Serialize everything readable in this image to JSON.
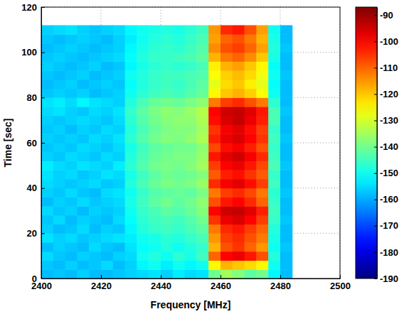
{
  "chart_data": {
    "type": "heatmap",
    "x_label": "Frequency [MHz]",
    "y_label": "Time [sec]",
    "xlim": [
      2400,
      2500
    ],
    "xticks": [
      2400,
      2420,
      2440,
      2460,
      2480,
      2500
    ],
    "ylim": [
      0,
      120
    ],
    "yticks": [
      0,
      20,
      40,
      60,
      80,
      100,
      120
    ],
    "grid": true,
    "x_edges": [
      2400,
      2404,
      2408,
      2412,
      2416,
      2420,
      2424,
      2428,
      2432,
      2436,
      2440,
      2444,
      2448,
      2452,
      2456,
      2460,
      2464,
      2468,
      2472,
      2476,
      2480,
      2484
    ],
    "y_edges": [
      0,
      4,
      8,
      12,
      16,
      20,
      24,
      28,
      32,
      36,
      40,
      44,
      48,
      52,
      56,
      60,
      64,
      68,
      72,
      76,
      80,
      84,
      88,
      92,
      96,
      100,
      104,
      108,
      112
    ],
    "cells": [
      [
        -158,
        -157,
        -158,
        -156,
        -158,
        -158,
        -157,
        -156,
        -155,
        -154,
        -156,
        -153,
        -155,
        -154,
        -140,
        -135,
        -138,
        -142,
        -140,
        -152,
        -158
      ],
      [
        -157,
        -158,
        -156,
        -158,
        -157,
        -155,
        -158,
        -156,
        -152,
        -150,
        -153,
        -150,
        -152,
        -150,
        -125,
        -118,
        -120,
        -122,
        -125,
        -150,
        -158
      ],
      [
        -155,
        -157,
        -158,
        -156,
        -157,
        -158,
        -156,
        -155,
        -150,
        -148,
        -150,
        -147,
        -149,
        -145,
        -110,
        -100,
        -98,
        -102,
        -108,
        -148,
        -158
      ],
      [
        -158,
        -156,
        -157,
        -158,
        -155,
        -157,
        -158,
        -154,
        -151,
        -150,
        -148,
        -150,
        -148,
        -146,
        -118,
        -108,
        -105,
        -110,
        -115,
        -150,
        -157
      ],
      [
        -154,
        -156,
        -155,
        -157,
        -156,
        -155,
        -154,
        -153,
        -150,
        -149,
        -147,
        -148,
        -146,
        -144,
        -115,
        -106,
        -104,
        -108,
        -112,
        -149,
        -158
      ],
      [
        -156,
        -158,
        -157,
        -155,
        -158,
        -156,
        -157,
        -152,
        -148,
        -146,
        -145,
        -146,
        -144,
        -142,
        -112,
        -104,
        -102,
        -106,
        -110,
        -148,
        -158
      ],
      [
        -157,
        -155,
        -158,
        -156,
        -157,
        -158,
        -155,
        -151,
        -147,
        -145,
        -144,
        -145,
        -143,
        -140,
        -105,
        -98,
        -96,
        -100,
        -106,
        -146,
        -157
      ],
      [
        -155,
        -157,
        -156,
        -158,
        -156,
        -157,
        -156,
        -150,
        -146,
        -144,
        -142,
        -143,
        -141,
        -138,
        -100,
        -95,
        -94,
        -97,
        -103,
        -145,
        -158
      ],
      [
        -158,
        -156,
        -157,
        -155,
        -157,
        -156,
        -155,
        -149,
        -145,
        -142,
        -140,
        -142,
        -140,
        -137,
        -108,
        -102,
        -100,
        -104,
        -110,
        -146,
        -158
      ],
      [
        -156,
        -157,
        -155,
        -157,
        -158,
        -155,
        -154,
        -150,
        -146,
        -143,
        -142,
        -141,
        -142,
        -139,
        -112,
        -106,
        -104,
        -107,
        -112,
        -147,
        -157
      ],
      [
        -155,
        -156,
        -157,
        -156,
        -155,
        -157,
        -156,
        -148,
        -144,
        -141,
        -139,
        -140,
        -139,
        -136,
        -104,
        -99,
        -97,
        -101,
        -106,
        -145,
        -158
      ],
      [
        -154,
        -156,
        -155,
        -157,
        -156,
        -154,
        -155,
        -149,
        -145,
        -142,
        -140,
        -141,
        -140,
        -138,
        -109,
        -103,
        -101,
        -105,
        -109,
        -146,
        -158
      ],
      [
        -153,
        -155,
        -156,
        -154,
        -155,
        -156,
        -153,
        -147,
        -143,
        -140,
        -139,
        -140,
        -138,
        -135,
        -106,
        -100,
        -98,
        -102,
        -107,
        -144,
        -157
      ],
      [
        -156,
        -157,
        -155,
        -156,
        -157,
        -155,
        -156,
        -148,
        -144,
        -141,
        -140,
        -139,
        -139,
        -136,
        -102,
        -97,
        -95,
        -99,
        -104,
        -145,
        -158
      ],
      [
        -157,
        -156,
        -157,
        -155,
        -156,
        -157,
        -155,
        -149,
        -145,
        -142,
        -141,
        -140,
        -140,
        -137,
        -107,
        -101,
        -99,
        -103,
        -108,
        -146,
        -158
      ],
      [
        -156,
        -157,
        -156,
        -157,
        -155,
        -156,
        -154,
        -147,
        -143,
        -140,
        -138,
        -139,
        -137,
        -134,
        -103,
        -98,
        -96,
        -100,
        -105,
        -145,
        -157
      ],
      [
        -157,
        -156,
        -158,
        -156,
        -157,
        -155,
        -156,
        -148,
        -144,
        -141,
        -139,
        -138,
        -138,
        -135,
        -105,
        -99,
        -97,
        -101,
        -106,
        -146,
        -158
      ],
      [
        -156,
        -157,
        -156,
        -155,
        -156,
        -157,
        -155,
        -147,
        -143,
        -140,
        -138,
        -137,
        -137,
        -134,
        -101,
        -96,
        -94,
        -98,
        -103,
        -144,
        -158
      ],
      [
        -155,
        -154,
        -156,
        -157,
        -155,
        -156,
        -154,
        -146,
        -142,
        -139,
        -137,
        -138,
        -136,
        -133,
        -100,
        -95,
        -94,
        -97,
        -102,
        -144,
        -157
      ],
      [
        -154,
        -153,
        -155,
        -152,
        -154,
        -155,
        -156,
        -148,
        -144,
        -141,
        -140,
        -141,
        -139,
        -137,
        -112,
        -106,
        -104,
        -108,
        -112,
        -147,
        -158
      ],
      [
        -157,
        -156,
        -157,
        -156,
        -158,
        -157,
        -156,
        -150,
        -147,
        -145,
        -144,
        -145,
        -143,
        -141,
        -125,
        -120,
        -118,
        -121,
        -126,
        -150,
        -158
      ],
      [
        -158,
        -157,
        -156,
        -158,
        -157,
        -156,
        -157,
        -151,
        -148,
        -146,
        -145,
        -146,
        -144,
        -142,
        -128,
        -122,
        -120,
        -124,
        -128,
        -151,
        -158
      ],
      [
        -157,
        -158,
        -157,
        -156,
        -158,
        -157,
        -156,
        -150,
        -148,
        -146,
        -145,
        -145,
        -144,
        -143,
        -126,
        -121,
        -119,
        -122,
        -127,
        -150,
        -157
      ],
      [
        -156,
        -157,
        -158,
        -157,
        -156,
        -158,
        -157,
        -152,
        -149,
        -147,
        -146,
        -147,
        -146,
        -144,
        -124,
        -118,
        -116,
        -120,
        -125,
        -151,
        -158
      ],
      [
        -157,
        -156,
        -157,
        -158,
        -157,
        -156,
        -155,
        -151,
        -148,
        -146,
        -146,
        -145,
        -144,
        -142,
        -118,
        -112,
        -110,
        -114,
        -120,
        -149,
        -158
      ],
      [
        -158,
        -157,
        -156,
        -157,
        -158,
        -157,
        -156,
        -152,
        -149,
        -147,
        -146,
        -147,
        -145,
        -143,
        -114,
        -108,
        -106,
        -110,
        -116,
        -148,
        -157
      ],
      [
        -157,
        -158,
        -157,
        -156,
        -157,
        -158,
        -156,
        -153,
        -150,
        -148,
        -147,
        -148,
        -146,
        -144,
        -116,
        -110,
        -108,
        -112,
        -118,
        -149,
        -158
      ],
      [
        -156,
        -155,
        -154,
        -156,
        -157,
        -156,
        -155,
        -152,
        -150,
        -149,
        -148,
        -149,
        -147,
        -145,
        -115,
        -104,
        -102,
        -108,
        -116,
        -150,
        -158
      ]
    ],
    "colorbar": {
      "range": [
        -190,
        -87
      ],
      "ticks": [
        -190,
        -180,
        -170,
        -160,
        -150,
        -140,
        -130,
        -120,
        -110,
        -100,
        -90
      ]
    }
  }
}
